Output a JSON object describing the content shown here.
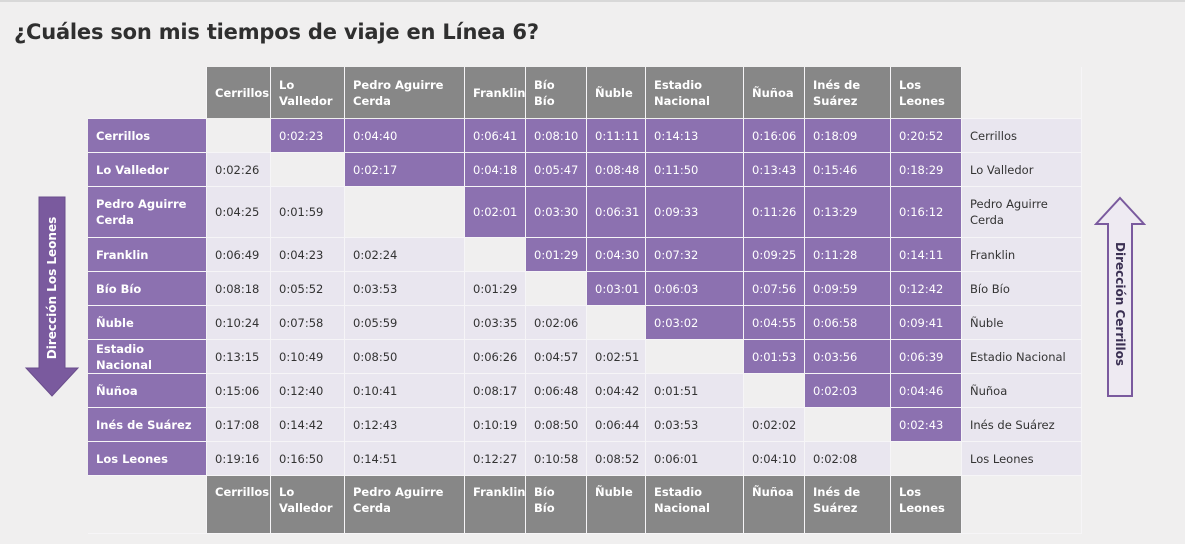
{
  "title": "¿Cuáles son mis tiempos de viaje en Línea 6?",
  "arrows": {
    "left_label": "Dirección Los Leones",
    "right_label": "Dirección Cerrillos"
  },
  "colors": {
    "accent": "#8c71b0",
    "header": "#878787",
    "light": "#e9e6ef"
  },
  "stations": [
    "Cerrillos",
    "Lo Valledor",
    "Pedro Aguirre Cerda",
    "Franklin",
    "Bío Bío",
    "Ñuble",
    "Estadio Nacional",
    "Ñuñoa",
    "Inés de Suárez",
    "Los Leones"
  ],
  "times": [
    [
      "",
      "0:02:23",
      "0:04:40",
      "0:06:41",
      "0:08:10",
      "0:11:11",
      "0:14:13",
      "0:16:06",
      "0:18:09",
      "0:20:52"
    ],
    [
      "0:02:26",
      "",
      "0:02:17",
      "0:04:18",
      "0:05:47",
      "0:08:48",
      "0:11:50",
      "0:13:43",
      "0:15:46",
      "0:18:29"
    ],
    [
      "0:04:25",
      "0:01:59",
      "",
      "0:02:01",
      "0:03:30",
      "0:06:31",
      "0:09:33",
      "0:11:26",
      "0:13:29",
      "0:16:12"
    ],
    [
      "0:06:49",
      "0:04:23",
      "0:02:24",
      "",
      "0:01:29",
      "0:04:30",
      "0:07:32",
      "0:09:25",
      "0:11:28",
      "0:14:11"
    ],
    [
      "0:08:18",
      "0:05:52",
      "0:03:53",
      "0:01:29",
      "",
      "0:03:01",
      "0:06:03",
      "0:07:56",
      "0:09:59",
      "0:12:42"
    ],
    [
      "0:10:24",
      "0:07:58",
      "0:05:59",
      "0:03:35",
      "0:02:06",
      "",
      "0:03:02",
      "0:04:55",
      "0:06:58",
      "0:09:41"
    ],
    [
      "0:13:15",
      "0:10:49",
      "0:08:50",
      "0:06:26",
      "0:04:57",
      "0:02:51",
      "",
      "0:01:53",
      "0:03:56",
      "0:06:39"
    ],
    [
      "0:15:06",
      "0:12:40",
      "0:10:41",
      "0:08:17",
      "0:06:48",
      "0:04:42",
      "0:01:51",
      "",
      "0:02:03",
      "0:04:46"
    ],
    [
      "0:17:08",
      "0:14:42",
      "0:12:43",
      "0:10:19",
      "0:08:50",
      "0:06:44",
      "0:03:53",
      "0:02:02",
      "",
      "0:02:43"
    ],
    [
      "0:19:16",
      "0:16:50",
      "0:14:51",
      "0:12:27",
      "0:10:58",
      "0:08:52",
      "0:06:01",
      "0:04:10",
      "0:02:08",
      ""
    ]
  ]
}
